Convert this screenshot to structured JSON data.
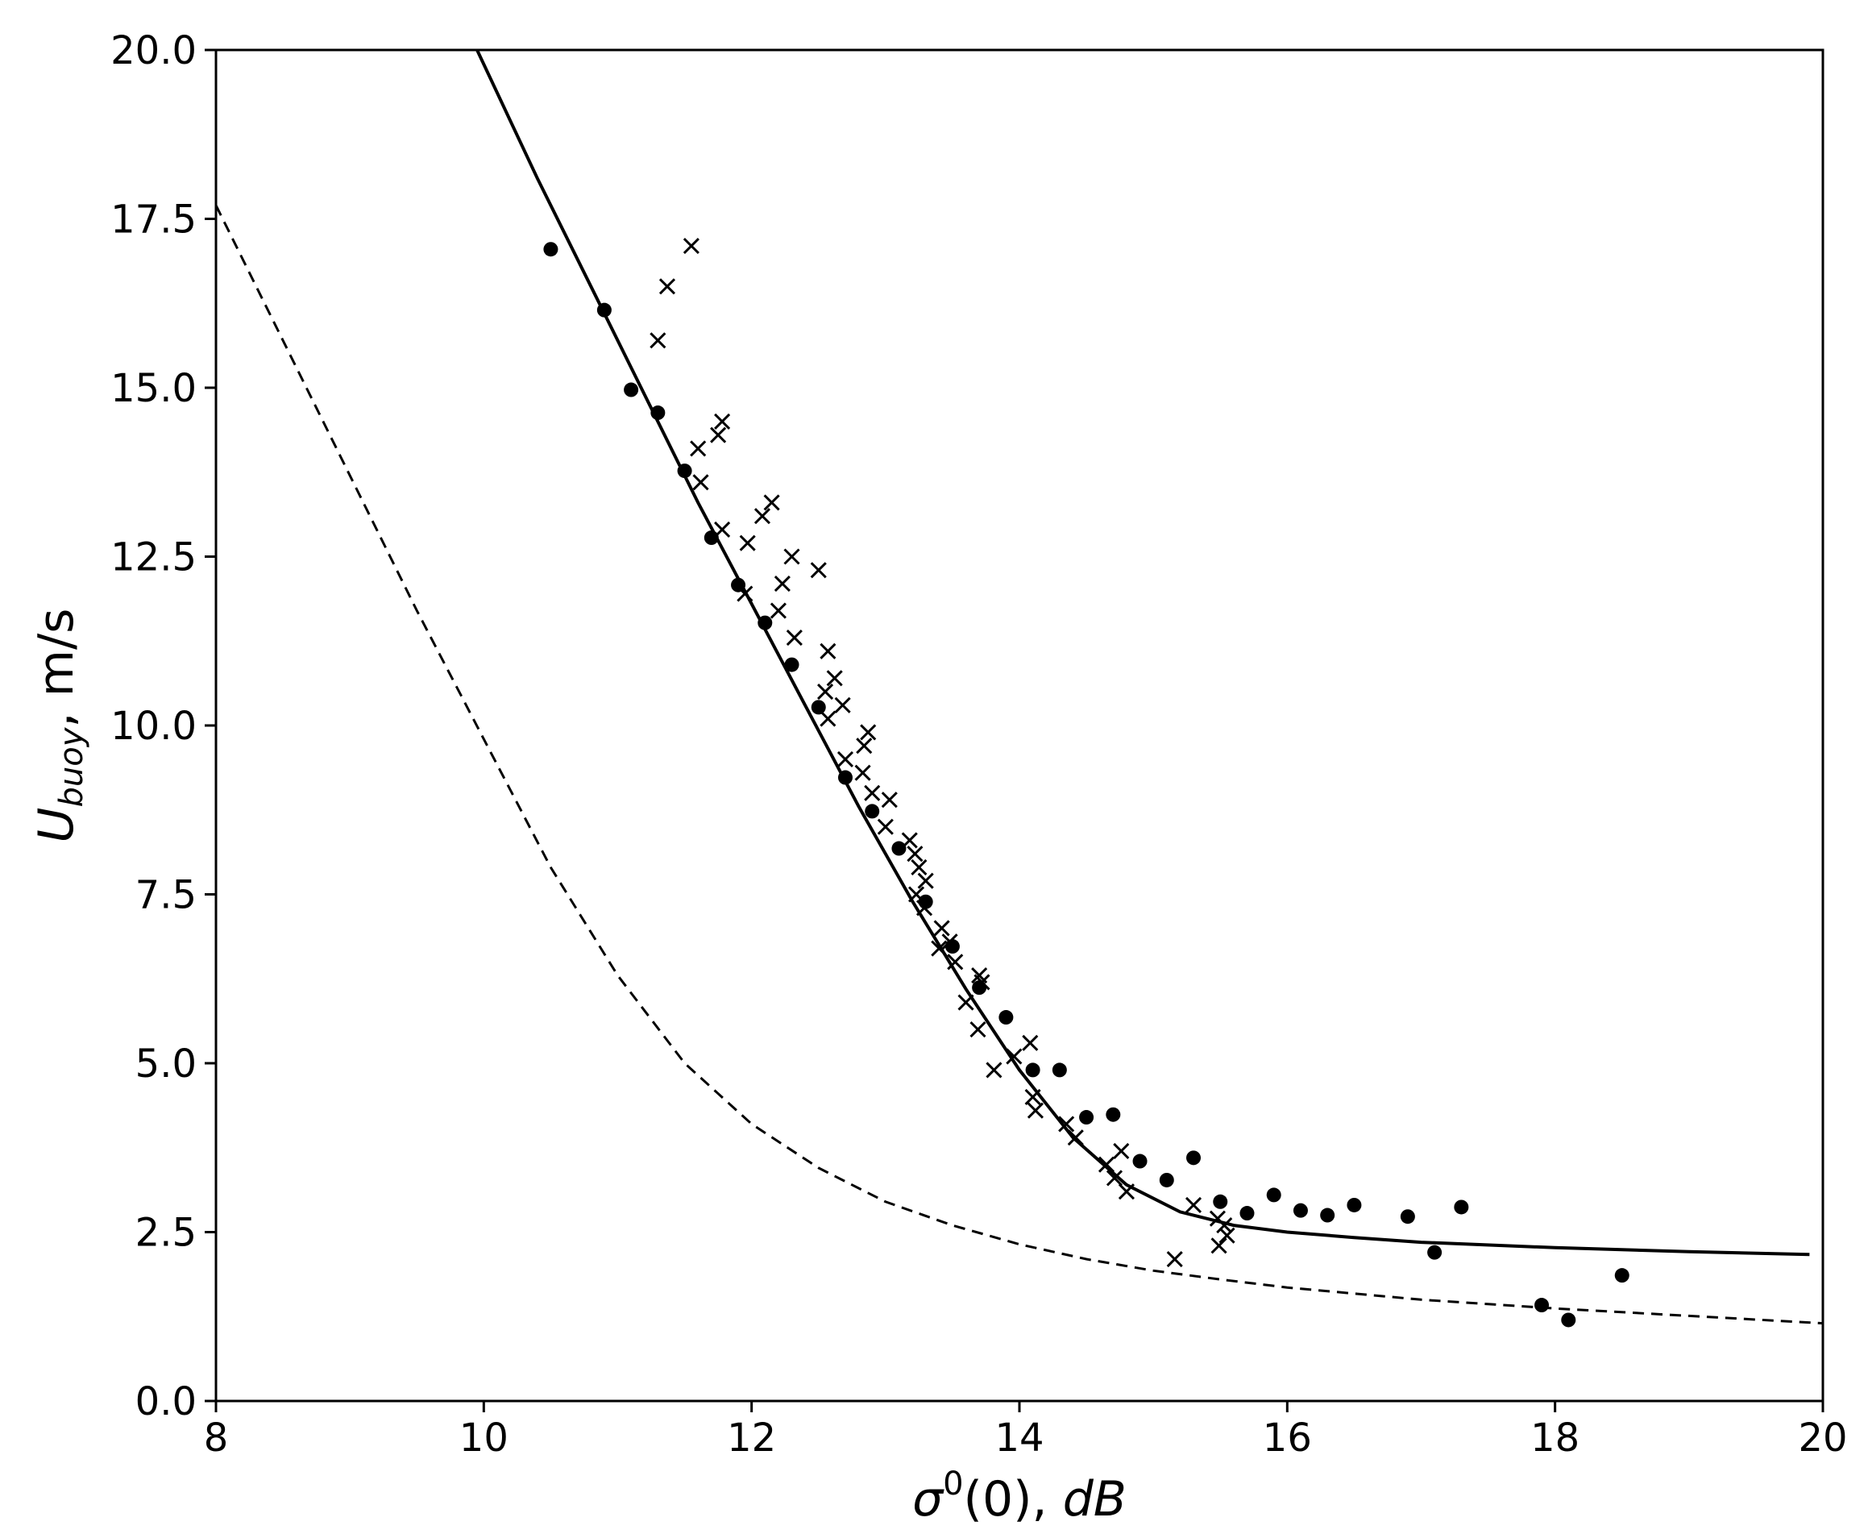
{
  "chart_data": {
    "type": "scatter",
    "title": "",
    "xlabel": {
      "sigma": "σ",
      "sup": "0",
      "mid": "(0), ",
      "unit": "dB"
    },
    "ylabel": {
      "base": "U",
      "sub": "buoy",
      "rest": ", m/s"
    },
    "xlim": [
      8,
      20
    ],
    "ylim": [
      0,
      20
    ],
    "x_ticks": [
      8,
      10,
      12,
      14,
      16,
      18,
      20
    ],
    "x_tick_labels": [
      "8",
      "10",
      "12",
      "14",
      "16",
      "18",
      "20"
    ],
    "y_ticks": [
      0,
      2.5,
      5,
      7.5,
      10,
      12.5,
      15,
      17.5,
      20
    ],
    "y_tick_labels": [
      "0.0",
      "2.5",
      "5.0",
      "7.5",
      "10.0",
      "12.5",
      "15.0",
      "17.5",
      "20.0"
    ],
    "grid": false,
    "legend": "none",
    "series": [
      {
        "kind": "line",
        "style": "solid",
        "color": "#000000",
        "x": [
          9.95,
          10.4,
          10.8,
          11.2,
          11.6,
          12.0,
          12.4,
          12.8,
          13.2,
          13.6,
          14.0,
          14.4,
          14.8,
          15.2,
          15.6,
          16.0,
          16.5,
          17.0,
          18.0,
          19.0,
          19.9
        ],
        "y": [
          20.0,
          18.1,
          16.5,
          14.9,
          13.3,
          11.8,
          10.3,
          8.8,
          7.4,
          6.1,
          4.9,
          3.9,
          3.2,
          2.8,
          2.6,
          2.5,
          2.42,
          2.35,
          2.27,
          2.21,
          2.17
        ]
      },
      {
        "kind": "line",
        "style": "dashed",
        "color": "#000000",
        "x": [
          8.0,
          8.5,
          9.0,
          9.5,
          10.0,
          10.5,
          11.0,
          11.5,
          12.0,
          12.5,
          13.0,
          13.5,
          14.0,
          14.5,
          15.0,
          15.5,
          16.0,
          17.0,
          18.0,
          19.0,
          20.0
        ],
        "y": [
          17.7,
          15.7,
          13.7,
          11.7,
          9.8,
          7.9,
          6.3,
          5.0,
          4.1,
          3.45,
          2.95,
          2.6,
          2.32,
          2.1,
          1.93,
          1.8,
          1.68,
          1.5,
          1.37,
          1.26,
          1.15
        ]
      },
      {
        "kind": "scatter",
        "marker": "circle",
        "color": "#000000",
        "x": [
          10.5,
          10.9,
          11.1,
          11.3,
          11.5,
          11.7,
          11.9,
          12.1,
          12.3,
          12.5,
          12.7,
          12.9,
          13.1,
          13.3,
          13.5,
          13.7,
          13.9,
          14.1,
          14.3,
          14.5,
          14.7,
          14.9,
          15.1,
          15.3,
          15.5,
          15.7,
          15.9,
          16.1,
          16.3,
          16.5,
          16.9,
          17.1,
          17.3,
          17.9,
          18.1,
          18.5
        ],
        "y": [
          17.05,
          16.15,
          14.97,
          14.63,
          13.77,
          12.78,
          12.08,
          11.52,
          10.9,
          10.27,
          9.23,
          8.73,
          8.18,
          7.39,
          6.73,
          6.12,
          5.68,
          4.9,
          4.9,
          4.2,
          4.24,
          3.55,
          3.27,
          3.6,
          2.95,
          2.78,
          3.05,
          2.82,
          2.75,
          2.9,
          2.73,
          2.2,
          2.87,
          1.42,
          1.2,
          1.86
        ]
      },
      {
        "kind": "scatter",
        "marker": "x",
        "color": "#000000",
        "x": [
          11.55,
          11.37,
          11.3,
          11.78,
          11.75,
          11.6,
          11.62,
          11.78,
          11.97,
          12.08,
          12.15,
          12.3,
          12.23,
          12.5,
          11.95,
          12.2,
          12.32,
          12.57,
          12.62,
          12.55,
          12.68,
          12.7,
          12.57,
          12.84,
          12.87,
          12.83,
          12.9,
          13.03,
          13.0,
          13.18,
          13.22,
          13.25,
          13.3,
          13.23,
          13.29,
          13.42,
          13.48,
          13.4,
          13.52,
          13.6,
          13.7,
          13.72,
          13.69,
          13.81,
          14.08,
          13.96,
          14.1,
          14.12,
          14.35,
          14.42,
          14.65,
          14.76,
          14.71,
          14.8,
          15.16,
          15.3,
          15.48,
          15.53,
          15.55,
          15.49
        ],
        "y": [
          17.1,
          16.5,
          15.7,
          14.5,
          14.3,
          14.1,
          13.6,
          12.9,
          12.7,
          13.1,
          13.3,
          12.5,
          12.1,
          12.3,
          11.95,
          11.7,
          11.3,
          11.1,
          10.7,
          10.5,
          10.3,
          9.5,
          10.1,
          9.7,
          9.9,
          9.3,
          9.0,
          8.9,
          8.5,
          8.3,
          8.1,
          7.9,
          7.7,
          7.5,
          7.3,
          7.0,
          6.8,
          6.7,
          6.5,
          5.9,
          6.3,
          6.2,
          5.5,
          4.9,
          5.3,
          5.1,
          4.5,
          4.3,
          4.1,
          3.9,
          3.5,
          3.7,
          3.3,
          3.1,
          2.1,
          2.9,
          2.7,
          2.6,
          2.45,
          2.3
        ]
      }
    ]
  }
}
